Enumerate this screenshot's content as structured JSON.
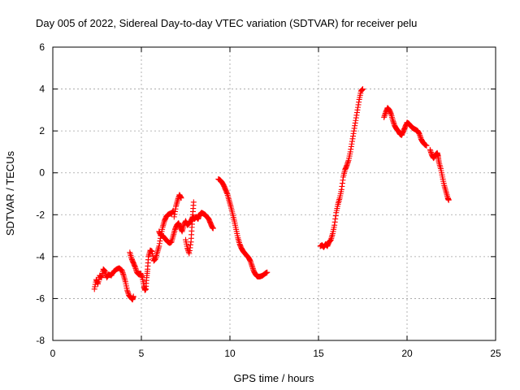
{
  "chart_data": {
    "type": "scatter",
    "title": "Day 005 of 2022, Sidereal Day-to-day VTEC variation (SDTVAR) for receiver pelu",
    "xlabel": "GPS time / hours",
    "ylabel": "SDTVAR / TECUs",
    "xlim": [
      0,
      25
    ],
    "ylim": [
      -8,
      6
    ],
    "xticks": [
      0,
      5,
      10,
      15,
      20,
      25
    ],
    "yticks": [
      -8,
      -6,
      -4,
      -2,
      0,
      2,
      4,
      6
    ],
    "grid": true,
    "marker": "plus",
    "color": "#ff0000",
    "segments": [
      {
        "points": [
          [
            2.35,
            -5.55
          ],
          [
            2.45,
            -5.1
          ],
          [
            2.55,
            -5.3
          ],
          [
            2.65,
            -4.9
          ],
          [
            2.75,
            -5.0
          ],
          [
            2.85,
            -4.6
          ],
          [
            2.95,
            -4.7
          ],
          [
            3.05,
            -5.0
          ],
          [
            3.15,
            -4.85
          ],
          [
            3.3,
            -4.9
          ],
          [
            3.45,
            -4.7
          ],
          [
            3.6,
            -4.6
          ],
          [
            3.75,
            -4.55
          ],
          [
            3.9,
            -4.65
          ],
          [
            4.0,
            -4.9
          ],
          [
            4.1,
            -5.2
          ],
          [
            4.2,
            -5.6
          ],
          [
            4.3,
            -5.85
          ],
          [
            4.4,
            -5.95
          ],
          [
            4.5,
            -6.05
          ],
          [
            4.55,
            -5.9
          ]
        ]
      },
      {
        "points": [
          [
            4.35,
            -3.8
          ],
          [
            4.45,
            -4.1
          ],
          [
            4.55,
            -4.3
          ],
          [
            4.65,
            -4.5
          ],
          [
            4.75,
            -4.75
          ],
          [
            4.85,
            -4.85
          ],
          [
            4.95,
            -4.8
          ],
          [
            5.05,
            -5.0
          ],
          [
            5.15,
            -5.4
          ],
          [
            5.2,
            -5.6
          ],
          [
            5.25,
            -5.55
          ],
          [
            5.3,
            -5.0
          ],
          [
            5.35,
            -4.6
          ],
          [
            5.4,
            -4.0
          ],
          [
            5.5,
            -3.7
          ],
          [
            5.6,
            -3.75
          ],
          [
            5.7,
            -4.2
          ],
          [
            5.8,
            -4.1
          ],
          [
            5.9,
            -3.8
          ],
          [
            6.0,
            -3.5
          ],
          [
            6.1,
            -3.0
          ],
          [
            6.2,
            -2.6
          ],
          [
            6.3,
            -2.3
          ],
          [
            6.4,
            -2.1
          ],
          [
            6.5,
            -2.0
          ],
          [
            6.6,
            -1.95
          ],
          [
            6.7,
            -1.95
          ],
          [
            6.8,
            -1.8
          ]
        ]
      },
      {
        "points": [
          [
            6.0,
            -2.8
          ],
          [
            6.1,
            -3.0
          ],
          [
            6.2,
            -3.0
          ],
          [
            6.3,
            -3.1
          ],
          [
            6.4,
            -3.2
          ],
          [
            6.5,
            -3.3
          ],
          [
            6.6,
            -3.35
          ],
          [
            6.7,
            -3.3
          ],
          [
            6.8,
            -3.0
          ],
          [
            6.9,
            -2.7
          ],
          [
            7.0,
            -2.5
          ],
          [
            7.1,
            -2.4
          ],
          [
            7.2,
            -2.6
          ],
          [
            7.3,
            -2.8
          ],
          [
            7.4,
            -2.5
          ],
          [
            7.5,
            -2.3
          ],
          [
            7.6,
            -2.5
          ],
          [
            7.7,
            -2.4
          ],
          [
            7.8,
            -2.3
          ],
          [
            7.9,
            -2.1
          ],
          [
            8.0,
            -2.2
          ],
          [
            8.1,
            -2.1
          ],
          [
            8.2,
            -2.2
          ],
          [
            8.3,
            -2.0
          ],
          [
            8.4,
            -1.9
          ],
          [
            8.5,
            -1.95
          ],
          [
            8.6,
            -2.0
          ],
          [
            8.7,
            -2.1
          ],
          [
            8.8,
            -2.2
          ],
          [
            8.9,
            -2.4
          ],
          [
            9.0,
            -2.6
          ],
          [
            9.05,
            -2.65
          ]
        ]
      },
      {
        "points": [
          [
            6.85,
            -2.1
          ],
          [
            6.95,
            -1.6
          ],
          [
            7.05,
            -1.3
          ],
          [
            7.15,
            -1.05
          ],
          [
            7.25,
            -1.2
          ]
        ]
      },
      {
        "points": [
          [
            7.5,
            -3.2
          ],
          [
            7.6,
            -3.6
          ],
          [
            7.7,
            -3.85
          ],
          [
            7.8,
            -3.3
          ],
          [
            7.85,
            -2.6
          ],
          [
            7.9,
            -2.0
          ],
          [
            7.95,
            -1.4
          ]
        ]
      },
      {
        "points": [
          [
            9.35,
            -0.3
          ],
          [
            9.45,
            -0.35
          ],
          [
            9.55,
            -0.45
          ],
          [
            9.65,
            -0.6
          ],
          [
            9.75,
            -0.8
          ],
          [
            9.85,
            -1.0
          ],
          [
            9.95,
            -1.3
          ],
          [
            10.05,
            -1.6
          ],
          [
            10.15,
            -1.95
          ],
          [
            10.25,
            -2.3
          ],
          [
            10.35,
            -2.7
          ],
          [
            10.45,
            -3.1
          ],
          [
            10.55,
            -3.4
          ],
          [
            10.65,
            -3.6
          ],
          [
            10.75,
            -3.75
          ],
          [
            10.85,
            -3.85
          ],
          [
            10.95,
            -3.95
          ],
          [
            11.05,
            -4.05
          ],
          [
            11.15,
            -4.2
          ],
          [
            11.25,
            -4.45
          ],
          [
            11.35,
            -4.7
          ],
          [
            11.45,
            -4.85
          ],
          [
            11.55,
            -4.95
          ],
          [
            11.7,
            -4.95
          ],
          [
            11.85,
            -4.9
          ],
          [
            12.0,
            -4.8
          ],
          [
            12.1,
            -4.75
          ]
        ]
      },
      {
        "points": [
          [
            15.1,
            -3.5
          ],
          [
            15.2,
            -3.45
          ],
          [
            15.3,
            -3.55
          ],
          [
            15.4,
            -3.4
          ],
          [
            15.5,
            -3.5
          ],
          [
            15.6,
            -3.3
          ],
          [
            15.7,
            -3.2
          ],
          [
            15.8,
            -2.9
          ],
          [
            15.9,
            -2.5
          ],
          [
            16.0,
            -1.9
          ],
          [
            16.1,
            -1.5
          ],
          [
            16.2,
            -1.2
          ],
          [
            16.3,
            -0.8
          ],
          [
            16.4,
            -0.2
          ],
          [
            16.5,
            0.15
          ],
          [
            16.6,
            0.35
          ],
          [
            16.7,
            0.6
          ],
          [
            16.8,
            1.0
          ],
          [
            16.9,
            1.5
          ],
          [
            17.0,
            2.0
          ],
          [
            17.1,
            2.5
          ],
          [
            17.2,
            3.0
          ],
          [
            17.3,
            3.5
          ],
          [
            17.4,
            3.9
          ],
          [
            17.5,
            4.0
          ]
        ]
      },
      {
        "points": [
          [
            18.7,
            2.65
          ],
          [
            18.8,
            2.9
          ],
          [
            18.9,
            3.1
          ],
          [
            19.0,
            3.0
          ],
          [
            19.1,
            2.8
          ],
          [
            19.2,
            2.5
          ],
          [
            19.3,
            2.25
          ],
          [
            19.4,
            2.1
          ],
          [
            19.5,
            2.0
          ],
          [
            19.6,
            1.85
          ],
          [
            19.7,
            1.8
          ],
          [
            19.8,
            2.0
          ],
          [
            19.9,
            2.2
          ],
          [
            20.0,
            2.4
          ],
          [
            20.1,
            2.35
          ],
          [
            20.2,
            2.25
          ],
          [
            20.3,
            2.15
          ],
          [
            20.4,
            2.1
          ],
          [
            20.5,
            2.05
          ],
          [
            20.6,
            2.0
          ],
          [
            20.7,
            1.85
          ],
          [
            20.8,
            1.6
          ],
          [
            20.9,
            1.45
          ],
          [
            21.0,
            1.35
          ],
          [
            21.1,
            1.3
          ]
        ]
      },
      {
        "points": [
          [
            21.3,
            1.1
          ],
          [
            21.4,
            0.85
          ],
          [
            21.5,
            0.7
          ],
          [
            21.6,
            0.85
          ],
          [
            21.7,
            0.95
          ],
          [
            21.75,
            0.8
          ],
          [
            21.8,
            0.5
          ],
          [
            21.9,
            0.2
          ],
          [
            22.0,
            -0.2
          ],
          [
            22.1,
            -0.6
          ],
          [
            22.2,
            -0.9
          ],
          [
            22.3,
            -1.2
          ],
          [
            22.35,
            -1.3
          ]
        ]
      }
    ]
  }
}
